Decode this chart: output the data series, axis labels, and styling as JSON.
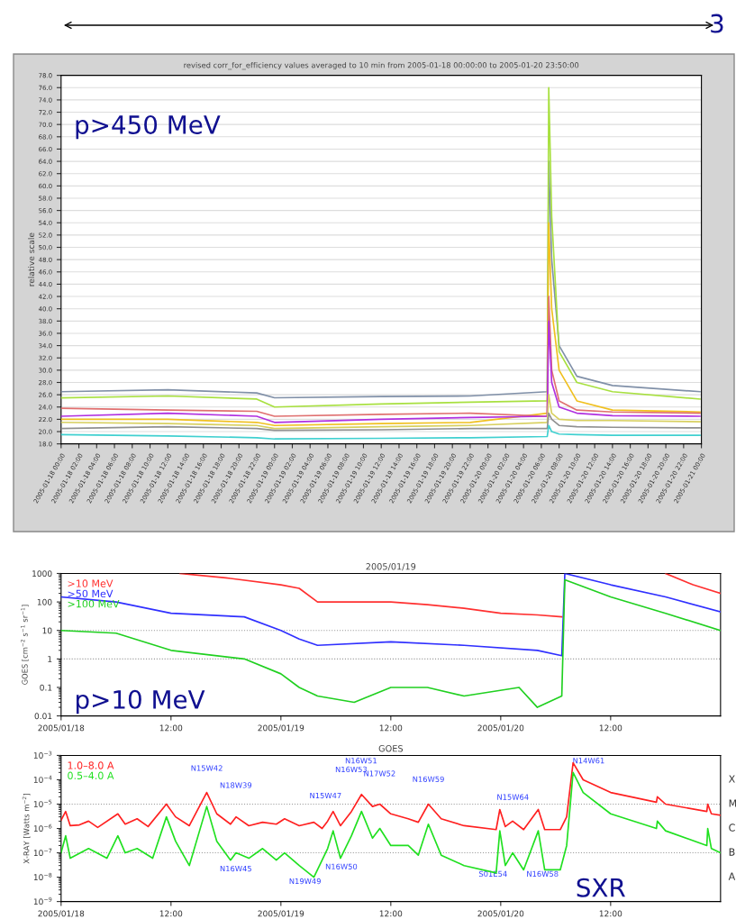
{
  "chart_data": [
    {
      "type": "line",
      "title": "revised corr_for_efficiency values averaged to 10 min from 2005-01-18 00:00:00 to 2005-01-20 23:50:00",
      "ylabel": "relative scale",
      "annotations": [
        "p>450 MeV",
        "3"
      ],
      "x": [
        "2005-01-18T00:00",
        "2005-01-18T12:00",
        "2005-01-18T22:00",
        "2005-01-19T00:00",
        "2005-01-19T12:00",
        "2005-01-19T22:00",
        "2005-01-20T06:40",
        "2005-01-20T06:50",
        "2005-01-20T07:10",
        "2005-01-20T08:00",
        "2005-01-20T10:00",
        "2005-01-20T14:00",
        "2005-01-20T23:50"
      ],
      "series": [
        {
          "color": "#8090a8",
          "values": [
            26.5,
            26.8,
            26.3,
            25.5,
            25.7,
            25.8,
            26.5,
            64.0,
            48,
            34,
            29,
            27.5,
            26.5
          ]
        },
        {
          "color": "#a8e040",
          "values": [
            25.5,
            25.8,
            25.3,
            24.0,
            24.5,
            24.8,
            25.0,
            76.0,
            55,
            33,
            28,
            26.5,
            25.3
          ]
        },
        {
          "color": "#f0c020",
          "values": [
            22.0,
            22.0,
            21.5,
            21.0,
            21.3,
            21.5,
            23.0,
            54.0,
            40,
            30,
            25,
            23.5,
            23.2
          ]
        },
        {
          "color": "#e07070",
          "values": [
            23.8,
            23.5,
            23.3,
            22.5,
            22.8,
            23.0,
            22.5,
            42.0,
            30,
            25,
            23.5,
            23.2,
            23.0
          ]
        },
        {
          "color": "#b030e0",
          "values": [
            22.5,
            23.0,
            22.5,
            21.5,
            22.0,
            22.3,
            22.5,
            38.0,
            28,
            24,
            23.0,
            22.6,
            22.5
          ]
        },
        {
          "color": "#d8d060",
          "values": [
            21.5,
            21.3,
            21.0,
            20.5,
            20.8,
            21.0,
            21.5,
            26.0,
            23,
            22,
            21.8,
            21.8,
            21.6
          ]
        },
        {
          "color": "#909090",
          "values": [
            20.5,
            20.8,
            20.5,
            20.2,
            20.3,
            20.5,
            20.5,
            23.0,
            22,
            21,
            20.8,
            20.7,
            20.6
          ]
        },
        {
          "color": "#40d0d0",
          "values": [
            19.5,
            19.3,
            19.0,
            18.8,
            18.9,
            19.0,
            19.2,
            21.0,
            20,
            19.6,
            19.5,
            19.4,
            19.4
          ]
        }
      ],
      "xlim": [
        "2005-01-18T00:00",
        "2005-01-21T00:00"
      ],
      "xticks": [
        {
          "value": "2005-01-18T00:00",
          "label": "2005-01-18 00:00"
        },
        {
          "value": "2005-01-18T02:00",
          "label": "2005-01-18 02:00"
        },
        {
          "value": "2005-01-18T04:00",
          "label": "2005-01-18 04:00"
        },
        {
          "value": "2005-01-18T06:00",
          "label": "2005-01-18 06:00"
        },
        {
          "value": "2005-01-18T08:00",
          "label": "2005-01-18 08:00"
        },
        {
          "value": "2005-01-18T10:00",
          "label": "2005-01-18 10:00"
        },
        {
          "value": "2005-01-18T12:00",
          "label": "2005-01-18 12:00"
        },
        {
          "value": "2005-01-18T14:00",
          "label": "2005-01-18 14:00"
        },
        {
          "value": "2005-01-18T16:00",
          "label": "2005-01-18 16:00"
        },
        {
          "value": "2005-01-18T18:00",
          "label": "2005-01-18 18:00"
        },
        {
          "value": "2005-01-18T20:00",
          "label": "2005-01-18 20:00"
        },
        {
          "value": "2005-01-18T22:00",
          "label": "2005-01-18 22:00"
        },
        {
          "value": "2005-01-19T00:00",
          "label": "2005-01-19 00:00"
        },
        {
          "value": "2005-01-19T02:00",
          "label": "2005-01-19 02:00"
        },
        {
          "value": "2005-01-19T04:00",
          "label": "2005-01-19 04:00"
        },
        {
          "value": "2005-01-19T06:00",
          "label": "2005-01-19 06:00"
        },
        {
          "value": "2005-01-19T08:00",
          "label": "2005-01-19 08:00"
        },
        {
          "value": "2005-01-19T10:00",
          "label": "2005-01-19 10:00"
        },
        {
          "value": "2005-01-19T12:00",
          "label": "2005-01-19 12:00"
        },
        {
          "value": "2005-01-19T14:00",
          "label": "2005-01-19 14:00"
        },
        {
          "value": "2005-01-19T16:00",
          "label": "2005-01-19 16:00"
        },
        {
          "value": "2005-01-19T18:00",
          "label": "2005-01-19 18:00"
        },
        {
          "value": "2005-01-19T20:00",
          "label": "2005-01-19 20:00"
        },
        {
          "value": "2005-01-19T22:00",
          "label": "2005-01-19 22:00"
        },
        {
          "value": "2005-01-20T00:00",
          "label": "2005-01-20 00:00"
        },
        {
          "value": "2005-01-20T02:00",
          "label": "2005-01-20 02:00"
        },
        {
          "value": "2005-01-20T04:00",
          "label": "2005-01-20 04:00"
        },
        {
          "value": "2005-01-20T06:00",
          "label": "2005-01-20 06:00"
        },
        {
          "value": "2005-01-20T08:00",
          "label": "2005-01-20 08:00"
        },
        {
          "value": "2005-01-20T10:00",
          "label": "2005-01-20 10:00"
        },
        {
          "value": "2005-01-20T12:00",
          "label": "2005-01-20 12:00"
        },
        {
          "value": "2005-01-20T14:00",
          "label": "2005-01-20 14:00"
        },
        {
          "value": "2005-01-20T16:00",
          "label": "2005-01-20 16:00"
        },
        {
          "value": "2005-01-20T18:00",
          "label": "2005-01-20 18:00"
        },
        {
          "value": "2005-01-20T20:00",
          "label": "2005-01-20 20:00"
        },
        {
          "value": "2005-01-20T22:00",
          "label": "2005-01-20 22:00"
        },
        {
          "value": "2005-01-21T00:00",
          "label": "2005-01-21 00:00"
        }
      ],
      "ylim": [
        18,
        78
      ],
      "yticks": [
        {
          "value": 18,
          "label": "18.0"
        },
        {
          "value": 20,
          "label": "20.0"
        },
        {
          "value": 22,
          "label": "22.0"
        },
        {
          "value": 24,
          "label": "24.0"
        },
        {
          "value": 26,
          "label": "26.0"
        },
        {
          "value": 28,
          "label": "28.0"
        },
        {
          "value": 30,
          "label": "30.0"
        },
        {
          "value": 32,
          "label": "32.0"
        },
        {
          "value": 34,
          "label": "34.0"
        },
        {
          "value": 36,
          "label": "36.0"
        },
        {
          "value": 38,
          "label": "38.0"
        },
        {
          "value": 40,
          "label": "40.0"
        },
        {
          "value": 42,
          "label": "42.0"
        },
        {
          "value": 44,
          "label": "44.0"
        },
        {
          "value": 46,
          "label": "46.0"
        },
        {
          "value": 48,
          "label": "48.0"
        },
        {
          "value": 50,
          "label": "50.0"
        },
        {
          "value": 52,
          "label": "52.0"
        },
        {
          "value": 54,
          "label": "54.0"
        },
        {
          "value": 56,
          "label": "56.0"
        },
        {
          "value": 58,
          "label": "58.0"
        },
        {
          "value": 60,
          "label": "60.0"
        },
        {
          "value": 62,
          "label": "62.0"
        },
        {
          "value": 64,
          "label": "64.0"
        },
        {
          "value": 66,
          "label": "66.0"
        },
        {
          "value": 68,
          "label": "68.0"
        },
        {
          "value": 70,
          "label": "70.0"
        },
        {
          "value": 72,
          "label": "72.0"
        },
        {
          "value": 74,
          "label": "74.0"
        },
        {
          "value": 76,
          "label": "76.0"
        },
        {
          "value": 78,
          "label": "78.0"
        }
      ],
      "grid": "y"
    },
    {
      "type": "line",
      "title": "2005/01/19",
      "ylabel": "GOES [cm$^{−2}$ s$^{−1}$ sr$^{−1}$]",
      "annotations": [
        "p>10 MeV"
      ],
      "log": "y",
      "legend": "top left",
      "series": [
        {
          "name": ">10 MeV",
          "color": "#ff3030",
          "x": [
            "2005-01-18T13:00",
            "2005-01-18T18:00",
            "2005-01-19T00:00",
            "2005-01-19T02:00",
            "2005-01-19T04:00",
            "2005-01-19T12:00",
            "2005-01-19T16:00",
            "2005-01-19T20:00",
            "2005-01-20T00:00",
            "2005-01-20T04:00",
            "2005-01-20T06:40",
            "2005-01-20T12:00",
            "2005-01-20T18:00",
            "2005-01-20T21:00",
            "2005-01-21T00:00"
          ],
          "values": [
            1000,
            700,
            400,
            300,
            100,
            100,
            80,
            60,
            40,
            35,
            30,
            null,
            1000,
            400,
            200
          ]
        },
        {
          "name": ">50 MeV",
          "color": "#3030ff",
          "x": [
            "2005-01-18T00:00",
            "2005-01-18T06:00",
            "2005-01-18T12:00",
            "2005-01-18T20:00",
            "2005-01-19T00:00",
            "2005-01-19T02:00",
            "2005-01-19T04:00",
            "2005-01-19T12:00",
            "2005-01-19T20:00",
            "2005-01-20T04:00",
            "2005-01-20T06:40",
            "2005-01-20T07:00",
            "2005-01-20T12:00",
            "2005-01-20T18:00",
            "2005-01-21T00:00"
          ],
          "values": [
            150,
            100,
            40,
            30,
            10,
            5,
            3,
            4,
            3,
            2,
            1.3,
            1000,
            400,
            150,
            45
          ]
        },
        {
          "name": ">100 MeV",
          "color": "#20d020",
          "x": [
            "2005-01-18T00:00",
            "2005-01-18T06:00",
            "2005-01-18T12:00",
            "2005-01-18T20:00",
            "2005-01-19T00:00",
            "2005-01-19T02:00",
            "2005-01-19T04:00",
            "2005-01-19T08:00",
            "2005-01-19T12:00",
            "2005-01-19T16:00",
            "2005-01-19T20:00",
            "2005-01-20T02:00",
            "2005-01-20T04:00",
            "2005-01-20T06:40",
            "2005-01-20T07:00",
            "2005-01-20T12:00",
            "2005-01-20T18:00",
            "2005-01-21T00:00"
          ],
          "values": [
            10,
            8,
            2,
            1,
            0.3,
            0.1,
            0.05,
            0.03,
            0.1,
            0.1,
            0.05,
            0.1,
            0.02,
            0.05,
            600,
            150,
            40,
            10
          ]
        }
      ],
      "xlim": [
        "2005-01-18T00:00",
        "2005-01-21T00:00"
      ],
      "xticks": [
        {
          "value": "2005-01-18T00:00",
          "label": "2005/01/18"
        },
        {
          "value": "2005-01-18T12:00",
          "label": "12:00"
        },
        {
          "value": "2005-01-19T00:00",
          "label": "2005/01/19"
        },
        {
          "value": "2005-01-19T12:00",
          "label": "12:00"
        },
        {
          "value": "2005-01-20T00:00",
          "label": "2005/01/20"
        },
        {
          "value": "2005-01-20T12:00",
          "label": "12:00"
        }
      ],
      "ylim": [
        0.01,
        1000
      ],
      "yticks": [
        0.01,
        0.1,
        1,
        10,
        100,
        1000
      ],
      "ref_lines": [
        {
          "axis": "y",
          "value": 10,
          "color": "#999999",
          "line_style": "dotted"
        },
        {
          "axis": "y",
          "value": 1,
          "color": "#999999",
          "line_style": "dotted"
        }
      ]
    },
    {
      "type": "line",
      "title": "GOES",
      "ylabel": "X-RAY [Watts m$^{−2}$]",
      "log": "y",
      "legend": "top left",
      "annotations": [
        "SXR",
        "N15W42",
        "N18W39",
        "N16W45",
        "N15W47",
        "N19W49",
        "N16W50",
        "N16W51",
        "N16W53",
        "N17W52",
        "N16W59",
        "N15W64",
        "S01E54",
        "N16W58",
        "N14W61",
        "X",
        "M",
        "C",
        "B",
        "A"
      ],
      "series": [
        {
          "name": "1.0–8.0 A",
          "color": "#ff2020",
          "x": [
            "2005-01-18T00:00",
            "2005-01-18T00:30",
            "2005-01-18T01:00",
            "2005-01-18T02:00",
            "2005-01-18T03:00",
            "2005-01-18T04:00",
            "2005-01-18T06:12",
            "2005-01-18T07:00",
            "2005-01-18T08:18",
            "2005-01-18T09:30",
            "2005-01-18T11:30",
            "2005-01-18T12:30",
            "2005-01-18T14:00",
            "2005-01-18T15:54",
            "2005-01-18T17:00",
            "2005-01-18T18:30",
            "2005-01-18T19:06",
            "2005-01-18T20:30",
            "2005-01-18T22:00",
            "2005-01-18T23:30",
            "2005-01-19T00:24",
            "2005-01-19T02:00",
            "2005-01-19T03:36",
            "2005-01-19T04:30",
            "2005-01-19T05:06",
            "2005-01-19T05:42",
            "2005-01-19T06:30",
            "2005-01-19T07:42",
            "2005-01-19T08:48",
            "2005-01-19T10:00",
            "2005-01-19T10:48",
            "2005-01-19T12:00",
            "2005-01-19T13:54",
            "2005-01-19T15:00",
            "2005-01-19T16:06",
            "2005-01-19T17:30",
            "2005-01-19T20:00",
            "2005-01-19T23:30",
            "2005-01-19T23:54",
            "2005-01-20T00:30",
            "2005-01-20T01:18",
            "2005-01-20T02:30",
            "2005-01-20T04:06",
            "2005-01-20T04:48",
            "2005-01-20T06:30",
            "2005-01-20T07:12",
            "2005-01-20T07:54",
            "2005-01-20T09:00",
            "2005-01-20T12:00",
            "2005-01-20T17:00",
            "2005-01-20T17:06",
            "2005-01-20T18:00",
            "2005-01-20T22:30",
            "2005-01-20T22:36",
            "2005-01-20T23:00",
            "2005-01-21T00:00"
          ],
          "values": [
            2.2e-06,
            5e-06,
            1.3e-06,
            1.4e-06,
            2e-06,
            1.1e-06,
            4e-06,
            1.5e-06,
            2.5e-06,
            1.2e-06,
            1e-05,
            3e-06,
            1.3e-06,
            3e-05,
            4e-06,
            1.5e-06,
            3e-06,
            1.3e-06,
            1.8e-06,
            1.5e-06,
            2.5e-06,
            1.3e-06,
            1.8e-06,
            1e-06,
            2e-06,
            5e-06,
            1.3e-06,
            5e-06,
            2.5e-05,
            8e-06,
            1e-05,
            4e-06,
            2.5e-06,
            1.8e-06,
            1e-05,
            2.5e-06,
            1.3e-06,
            9e-07,
            6e-06,
            1.2e-06,
            2e-06,
            9e-07,
            6e-06,
            9e-07,
            9e-07,
            3e-06,
            0.0005,
            0.0001,
            3e-05,
            1.2e-05,
            2e-05,
            1e-05,
            5e-06,
            1e-05,
            4e-06,
            3.5e-06
          ]
        },
        {
          "name": "0.5–4.0 A",
          "color": "#20e020",
          "x": [
            "2005-01-18T00:00",
            "2005-01-18T00:30",
            "2005-01-18T01:00",
            "2005-01-18T03:00",
            "2005-01-18T05:00",
            "2005-01-18T06:12",
            "2005-01-18T07:00",
            "2005-01-18T08:18",
            "2005-01-18T10:00",
            "2005-01-18T11:30",
            "2005-01-18T12:30",
            "2005-01-18T14:00",
            "2005-01-18T15:54",
            "2005-01-18T17:00",
            "2005-01-18T18:30",
            "2005-01-18T19:06",
            "2005-01-18T20:30",
            "2005-01-18T22:00",
            "2005-01-18T23:30",
            "2005-01-19T00:24",
            "2005-01-19T02:00",
            "2005-01-19T03:36",
            "2005-01-19T04:30",
            "2005-01-19T05:06",
            "2005-01-19T05:42",
            "2005-01-19T06:30",
            "2005-01-19T07:42",
            "2005-01-19T08:48",
            "2005-01-19T10:00",
            "2005-01-19T10:48",
            "2005-01-19T12:00",
            "2005-01-19T13:54",
            "2005-01-19T15:00",
            "2005-01-19T16:06",
            "2005-01-19T17:30",
            "2005-01-19T20:00",
            "2005-01-19T23:30",
            "2005-01-19T23:54",
            "2005-01-20T00:30",
            "2005-01-20T01:18",
            "2005-01-20T02:30",
            "2005-01-20T04:06",
            "2005-01-20T04:48",
            "2005-01-20T06:30",
            "2005-01-20T07:12",
            "2005-01-20T07:54",
            "2005-01-20T09:00",
            "2005-01-20T12:00",
            "2005-01-20T17:00",
            "2005-01-20T17:06",
            "2005-01-20T18:00",
            "2005-01-20T22:30",
            "2005-01-20T22:36",
            "2005-01-20T23:00",
            "2005-01-21T00:00"
          ],
          "values": [
            1e-07,
            5e-07,
            6e-08,
            1.5e-07,
            6e-08,
            5e-07,
            1e-07,
            1.5e-07,
            6e-08,
            3e-06,
            3e-07,
            3e-08,
            8e-06,
            3e-07,
            5e-08,
            1e-07,
            6e-08,
            1.5e-07,
            5e-08,
            1e-07,
            3e-08,
            1e-08,
            5e-08,
            1.5e-07,
            8e-07,
            6e-08,
            5e-07,
            5e-06,
            4e-07,
            1e-06,
            2e-07,
            2e-07,
            8e-08,
            1.5e-06,
            8e-08,
            3e-08,
            1.5e-08,
            8e-07,
            3e-08,
            1e-07,
            2e-08,
            8e-07,
            2e-08,
            2e-08,
            2e-07,
            0.0002,
            3e-05,
            4e-06,
            1e-06,
            2e-06,
            8e-07,
            2e-07,
            1e-06,
            1.5e-07,
            1e-07
          ]
        }
      ],
      "xlim": [
        "2005-01-18T00:00",
        "2005-01-21T00:00"
      ],
      "xticks": [
        {
          "value": "2005-01-18T00:00",
          "label": "2005/01/18"
        },
        {
          "value": "2005-01-18T12:00",
          "label": "12:00"
        },
        {
          "value": "2005-01-19T00:00",
          "label": "2005/01/19"
        },
        {
          "value": "2005-01-19T12:00",
          "label": "12:00"
        },
        {
          "value": "2005-01-20T00:00",
          "label": "2005/01/20"
        },
        {
          "value": "2005-01-20T12:00",
          "label": "12:00"
        }
      ],
      "ylim": [
        1e-09,
        0.001
      ],
      "yticks": [
        {
          "value": 1e-09,
          "label": "10$^{−9}$"
        },
        {
          "value": 1e-08,
          "label": "10$^{−8}$"
        },
        {
          "value": 1e-07,
          "label": "10$^{−7}$"
        },
        {
          "value": 1e-06,
          "label": "10$^{−6}$"
        },
        {
          "value": 1e-05,
          "label": "10$^{−5}$"
        },
        {
          "value": 0.0001,
          "label": "10$^{−4}$"
        },
        {
          "value": 0.001,
          "label": "10$^{−3}$"
        }
      ],
      "ref_lines": [
        {
          "axis": "y",
          "value": 1e-05,
          "color": "#999999",
          "line_style": "dotted"
        },
        {
          "axis": "y",
          "value": 1e-07,
          "color": "#999999",
          "line_style": "dotted"
        }
      ]
    }
  ]
}
